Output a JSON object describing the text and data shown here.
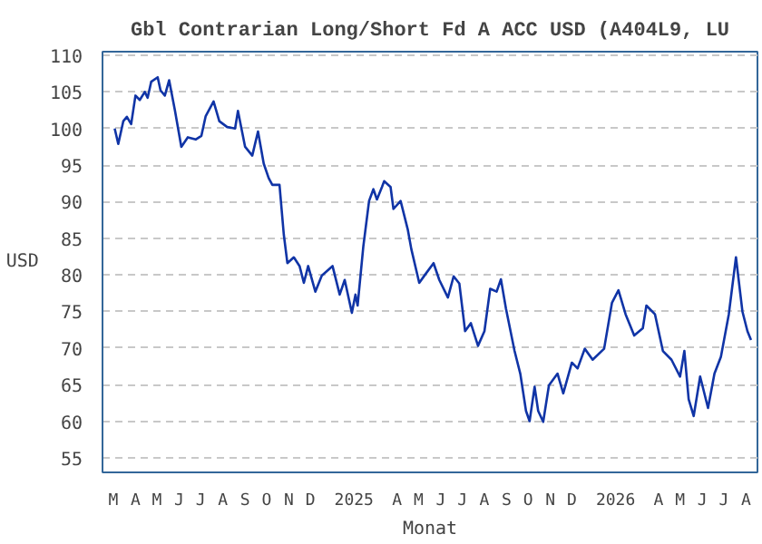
{
  "chart_data": {
    "type": "line",
    "title": "Gbl Contrarian Long/Short Fd A ACC USD (A404L9, LU",
    "xlabel": "Monat",
    "ylabel": "USD",
    "x": [
      "2024-03-18",
      "2024-03-23",
      "2024-03-30",
      "2024-04-04",
      "2024-04-10",
      "2024-04-16",
      "2024-04-22",
      "2024-04-29",
      "2024-05-03",
      "2024-05-08",
      "2024-05-17",
      "2024-05-21",
      "2024-05-27",
      "2024-06-02",
      "2024-06-10",
      "2024-06-19",
      "2024-06-28",
      "2024-07-09",
      "2024-07-17",
      "2024-07-23",
      "2024-08-03",
      "2024-08-11",
      "2024-08-22",
      "2024-09-02",
      "2024-09-06",
      "2024-09-16",
      "2024-09-26",
      "2024-10-04",
      "2024-10-12",
      "2024-10-19",
      "2024-10-24",
      "2024-11-03",
      "2024-11-09",
      "2024-11-14",
      "2024-11-23",
      "2024-12-01",
      "2024-12-07",
      "2024-12-13",
      "2024-12-23",
      "2025-01-01",
      "2025-01-16",
      "2025-01-26",
      "2025-02-02",
      "2025-02-12",
      "2025-02-17",
      "2025-02-20",
      "2025-02-28",
      "2025-03-08",
      "2025-03-14",
      "2025-03-19",
      "2025-03-26",
      "2025-03-29",
      "2025-04-07",
      "2025-04-11",
      "2025-04-21",
      "2025-05-01",
      "2025-05-06",
      "2025-05-17",
      "2025-05-25",
      "2025-06-06",
      "2025-06-14",
      "2025-06-26",
      "2025-07-04",
      "2025-07-12",
      "2025-07-20",
      "2025-07-28",
      "2025-08-07",
      "2025-08-16",
      "2025-08-24",
      "2025-09-02",
      "2025-09-08",
      "2025-09-15",
      "2025-09-27",
      "2025-10-05",
      "2025-10-13",
      "2025-10-18",
      "2025-10-25",
      "2025-10-30",
      "2025-11-06",
      "2025-11-14",
      "2025-11-26",
      "2025-12-04",
      "2025-12-16",
      "2025-12-24",
      "2026-01-03",
      "2026-01-14",
      "2026-01-30",
      "2026-02-10",
      "2026-02-19",
      "2026-03-01",
      "2026-03-13",
      "2026-03-25",
      "2026-03-30",
      "2026-04-11",
      "2026-04-22",
      "2026-05-04",
      "2026-05-16",
      "2026-05-22",
      "2026-05-28",
      "2026-06-04",
      "2026-06-13",
      "2026-06-24",
      "2026-07-03",
      "2026-07-12",
      "2026-07-23",
      "2026-08-02",
      "2026-08-11",
      "2026-08-18",
      "2026-08-23"
    ],
    "series": [
      {
        "color": "#1034a6",
        "values": [
          100.0,
          97.9,
          101.0,
          101.6,
          100.6,
          104.5,
          103.9,
          105.0,
          104.2,
          106.4,
          107.0,
          105.2,
          104.5,
          106.6,
          102.5,
          97.5,
          98.8,
          98.5,
          99.0,
          101.7,
          103.7,
          101.0,
          100.2,
          100.0,
          102.4,
          97.5,
          96.3,
          99.6,
          95.2,
          93.2,
          92.3,
          92.3,
          85.5,
          81.6,
          82.4,
          81.2,
          78.9,
          81.2,
          77.7,
          79.9,
          81.2,
          77.3,
          79.3,
          74.8,
          77.3,
          75.8,
          83.9,
          90.1,
          91.7,
          90.3,
          92.0,
          92.8,
          92.0,
          89.0,
          90.1,
          86.2,
          83.5,
          78.9,
          80.0,
          81.6,
          79.3,
          76.9,
          79.8,
          78.8,
          72.3,
          73.4,
          70.3,
          72.3,
          78.1,
          77.7,
          79.4,
          75.4,
          69.6,
          66.5,
          61.4,
          60.0,
          64.7,
          61.4,
          59.9,
          64.9,
          66.5,
          63.8,
          68.0,
          67.2,
          69.9,
          68.4,
          69.9,
          76.2,
          77.9,
          74.6,
          71.7,
          72.7,
          75.8,
          74.6,
          69.6,
          68.4,
          66.1,
          69.6,
          63.0,
          60.7,
          66.1,
          61.8,
          66.5,
          68.8,
          74.6,
          82.4,
          75.0,
          72.3,
          71.1
        ]
      }
    ],
    "xlim": [
      "2024-03-01",
      "2026-09-01"
    ],
    "xticks": [
      {
        "value": "2024-03-16",
        "label": "M"
      },
      {
        "value": "2024-04-16",
        "label": "A"
      },
      {
        "value": "2024-05-16",
        "label": "M"
      },
      {
        "value": "2024-06-16",
        "label": "J"
      },
      {
        "value": "2024-07-16",
        "label": "J"
      },
      {
        "value": "2024-08-16",
        "label": "A"
      },
      {
        "value": "2024-09-16",
        "label": "S"
      },
      {
        "value": "2024-10-16",
        "label": "O"
      },
      {
        "value": "2024-11-16",
        "label": "N"
      },
      {
        "value": "2024-12-16",
        "label": "D"
      },
      {
        "value": "2025-02-15",
        "label": "2025"
      },
      {
        "value": "2025-04-16",
        "label": "A"
      },
      {
        "value": "2025-05-16",
        "label": "M"
      },
      {
        "value": "2025-06-16",
        "label": "J"
      },
      {
        "value": "2025-07-16",
        "label": "J"
      },
      {
        "value": "2025-08-16",
        "label": "A"
      },
      {
        "value": "2025-09-16",
        "label": "S"
      },
      {
        "value": "2025-10-16",
        "label": "O"
      },
      {
        "value": "2025-11-16",
        "label": "N"
      },
      {
        "value": "2025-12-16",
        "label": "D"
      },
      {
        "value": "2026-02-15",
        "label": "2026"
      },
      {
        "value": "2026-04-16",
        "label": "A"
      },
      {
        "value": "2026-05-16",
        "label": "M"
      },
      {
        "value": "2026-06-16",
        "label": "J"
      },
      {
        "value": "2026-07-16",
        "label": "J"
      },
      {
        "value": "2026-08-16",
        "label": "A"
      }
    ],
    "ylim": [
      53,
      110.5
    ],
    "yticks": [
      55,
      60,
      65,
      70,
      75,
      80,
      85,
      90,
      95,
      100,
      105,
      110
    ],
    "grid": "y",
    "line_style": "solid"
  }
}
